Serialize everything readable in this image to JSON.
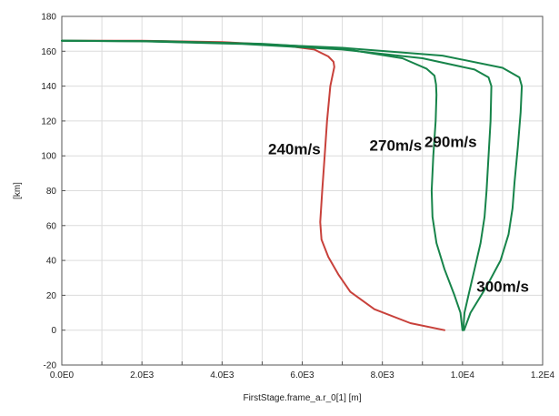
{
  "chart_data": {
    "type": "line",
    "title": "",
    "xlabel": "FirstStage.frame_a.r_0[1] [m]",
    "ylabel": "[km]",
    "xlim": [
      0,
      12000
    ],
    "ylim": [
      -20,
      180
    ],
    "grid": true,
    "x_ticks": [
      0,
      2000,
      4000,
      6000,
      8000,
      10000,
      12000
    ],
    "x_tick_labels": [
      "0.0E0",
      "2.0E3",
      "4.0E3",
      "6.0E3",
      "8.0E3",
      "1.0E4",
      "1.2E4"
    ],
    "y_ticks": [
      -20,
      0,
      20,
      40,
      60,
      80,
      100,
      120,
      140,
      160,
      180
    ],
    "y_tick_labels": [
      "-20",
      "0",
      "20",
      "40",
      "60",
      "80",
      "100",
      "120",
      "140",
      "160",
      "180"
    ],
    "series": [
      {
        "color": "#c8413b",
        "x": [
          9550,
          8700,
          7800,
          7200,
          6900,
          6650,
          6480,
          6450,
          6500,
          6560,
          6620,
          6700,
          6800,
          6780,
          6650,
          6300,
          5500,
          4000,
          2000,
          0
        ],
        "y": [
          0,
          4,
          12,
          22,
          32,
          42,
          52,
          62,
          80,
          100,
          120,
          140,
          151,
          154,
          157,
          161,
          163.5,
          165.3,
          166,
          166
        ]
      },
      {
        "color": "#17844a",
        "x": [
          10000,
          9950,
          9800,
          9550,
          9350,
          9250,
          9230,
          9270,
          9330,
          9350,
          9340,
          9300,
          9100,
          8500,
          7000,
          5000,
          2500,
          0
        ],
        "y": [
          0,
          10,
          20,
          35,
          50,
          65,
          80,
          100,
          120,
          135,
          141,
          146,
          150,
          156,
          161.5,
          164.3,
          165.8,
          166
        ]
      },
      {
        "color": "#17844a",
        "x": [
          10020,
          10050,
          10150,
          10300,
          10450,
          10550,
          10600,
          10650,
          10700,
          10720,
          10650,
          10300,
          9000,
          7000,
          4500,
          2000,
          0
        ],
        "y": [
          0,
          10,
          20,
          35,
          50,
          65,
          80,
          100,
          120,
          140,
          145,
          149.5,
          156,
          161,
          164.2,
          165.7,
          166
        ]
      },
      {
        "color": "#17844a",
        "x": [
          10040,
          10200,
          10600,
          10950,
          11150,
          11250,
          11300,
          11380,
          11450,
          11480,
          11420,
          11000,
          9500,
          7000,
          4500,
          2000,
          0
        ],
        "y": [
          0,
          10,
          25,
          40,
          55,
          70,
          85,
          105,
          125,
          140,
          145,
          150.5,
          157.5,
          162,
          164.5,
          165.8,
          166
        ]
      }
    ],
    "annotations": [
      {
        "text": "240m/s",
        "x": 5150,
        "y": 101
      },
      {
        "text": "270m/s",
        "x": 7680,
        "y": 103
      },
      {
        "text": "290m/s",
        "x": 9050,
        "y": 105
      },
      {
        "text": "300m/s",
        "x": 10350,
        "y": 22
      }
    ]
  }
}
